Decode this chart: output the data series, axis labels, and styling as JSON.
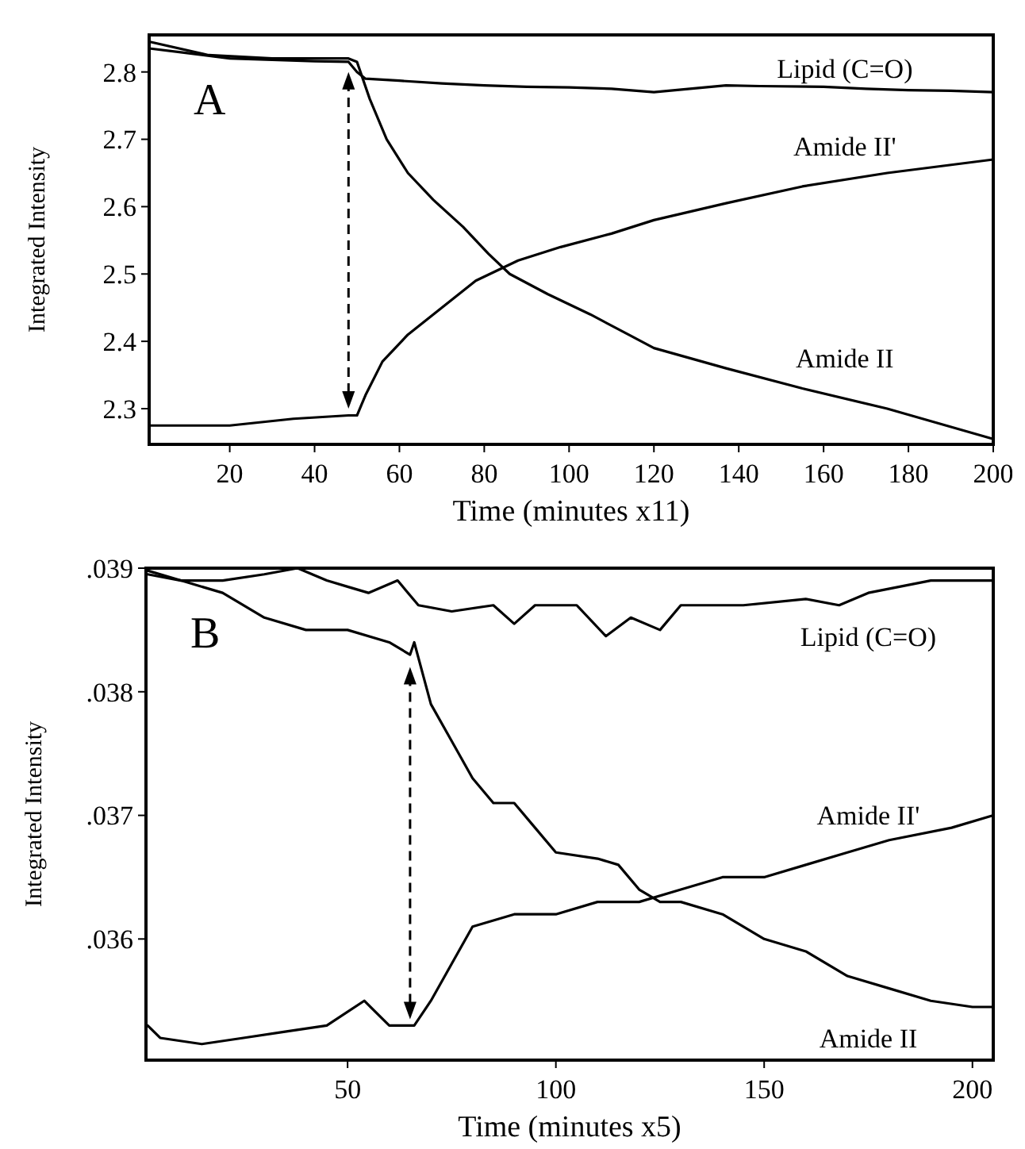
{
  "chart_data": [
    {
      "type": "line",
      "xlabel": "Time (minutes x11)",
      "ylabel": "Integrated Intensity",
      "annotations": [
        "A"
      ],
      "xlim": [
        1,
        200
      ],
      "ylim": [
        2.247,
        2.855
      ],
      "xticks": [
        20,
        40,
        60,
        80,
        100,
        120,
        140,
        160,
        180,
        200
      ],
      "yticks": [
        2.3,
        2.4,
        2.5,
        2.6,
        2.7,
        2.8
      ],
      "grid": false,
      "line_style": "solid",
      "series": [
        {
          "name": "Lipid (C=O)",
          "color": "#000000",
          "x": [
            1,
            10,
            20,
            30,
            40,
            48,
            50,
            52,
            60,
            70,
            80,
            90,
            100,
            110,
            120,
            137,
            145,
            160,
            170,
            180,
            190,
            200
          ],
          "values": [
            2.835,
            2.828,
            2.82,
            2.818,
            2.816,
            2.815,
            2.8,
            2.79,
            2.787,
            2.783,
            2.78,
            2.778,
            2.777,
            2.775,
            2.77,
            2.78,
            2.779,
            2.778,
            2.775,
            2.773,
            2.772,
            2.77
          ]
        },
        {
          "name": "Amide II",
          "color": "#000000",
          "x": [
            1,
            15,
            30,
            48,
            50,
            53,
            57,
            62,
            68,
            75,
            81,
            86,
            95,
            105,
            114,
            120,
            137,
            155,
            175,
            200
          ],
          "values": [
            2.845,
            2.825,
            2.82,
            2.82,
            2.815,
            2.76,
            2.7,
            2.65,
            2.61,
            2.57,
            2.53,
            2.5,
            2.47,
            2.44,
            2.41,
            2.39,
            2.36,
            2.33,
            2.3,
            2.255
          ]
        },
        {
          "name": "Amide II'",
          "color": "#000000",
          "x": [
            1,
            20,
            35,
            48,
            50,
            52,
            56,
            62,
            70,
            78,
            88,
            98,
            110,
            120,
            137,
            155,
            175,
            200
          ],
          "values": [
            2.275,
            2.275,
            2.285,
            2.29,
            2.29,
            2.32,
            2.37,
            2.41,
            2.45,
            2.49,
            2.52,
            2.54,
            2.56,
            2.58,
            2.605,
            2.63,
            2.65,
            2.67
          ]
        }
      ]
    },
    {
      "type": "line",
      "xlabel": "Time (minutes x5)",
      "ylabel": "Integrated Intensity",
      "annotations": [
        "B"
      ],
      "xlim": [
        1.6,
        205
      ],
      "ylim": [
        0.03502,
        0.039
      ],
      "xticks": [
        50,
        100,
        150,
        200
      ],
      "yticks": [
        {
          "value": 0.036,
          "label": ".036"
        },
        {
          "value": 0.037,
          "label": ".037"
        },
        {
          "value": 0.038,
          "label": ".038"
        },
        {
          "value": 0.039,
          "label": ".039"
        }
      ],
      "grid": false,
      "line_style": "solid",
      "series": [
        {
          "name": "Lipid (C=O)",
          "color": "#000000",
          "x": [
            2,
            10,
            20,
            30,
            38,
            45,
            50,
            55,
            62,
            67,
            75,
            85,
            90,
            95,
            105,
            112,
            118,
            125,
            130,
            145,
            160,
            168,
            175,
            190,
            200,
            205
          ],
          "values": [
            0.03895,
            0.0389,
            0.0389,
            0.03895,
            0.039,
            0.0389,
            0.03885,
            0.0388,
            0.0389,
            0.0387,
            0.03865,
            0.0387,
            0.03855,
            0.0387,
            0.0387,
            0.03845,
            0.0386,
            0.0385,
            0.0387,
            0.0387,
            0.03875,
            0.0387,
            0.0388,
            0.0389,
            0.0389,
            0.0389
          ]
        },
        {
          "name": "Amide II",
          "color": "#000000",
          "x": [
            2,
            10,
            20,
            30,
            40,
            50,
            60,
            65,
            66,
            70,
            75,
            80,
            85,
            90,
            95,
            100,
            110,
            115,
            120,
            125,
            130,
            140,
            150,
            160,
            170,
            180,
            190,
            200,
            205
          ],
          "values": [
            0.03898,
            0.0389,
            0.0388,
            0.0386,
            0.0385,
            0.0385,
            0.0384,
            0.0383,
            0.0384,
            0.0379,
            0.0376,
            0.0373,
            0.0371,
            0.0371,
            0.0369,
            0.0367,
            0.03665,
            0.0366,
            0.0364,
            0.0363,
            0.0363,
            0.0362,
            0.036,
            0.0359,
            0.0357,
            0.0356,
            0.0355,
            0.03545,
            0.03545
          ]
        },
        {
          "name": "Amide II'",
          "color": "#000000",
          "x": [
            2,
            5,
            15,
            25,
            35,
            45,
            54,
            60,
            66,
            70,
            75,
            80,
            90,
            100,
            110,
            120,
            130,
            140,
            150,
            160,
            170,
            180,
            195,
            205
          ],
          "values": [
            0.0353,
            0.0352,
            0.03515,
            0.0352,
            0.03525,
            0.0353,
            0.0355,
            0.0353,
            0.0353,
            0.0355,
            0.0358,
            0.0361,
            0.0362,
            0.0362,
            0.0363,
            0.0363,
            0.0364,
            0.0365,
            0.0365,
            0.0366,
            0.0367,
            0.0368,
            0.0369,
            0.037
          ]
        }
      ]
    }
  ]
}
